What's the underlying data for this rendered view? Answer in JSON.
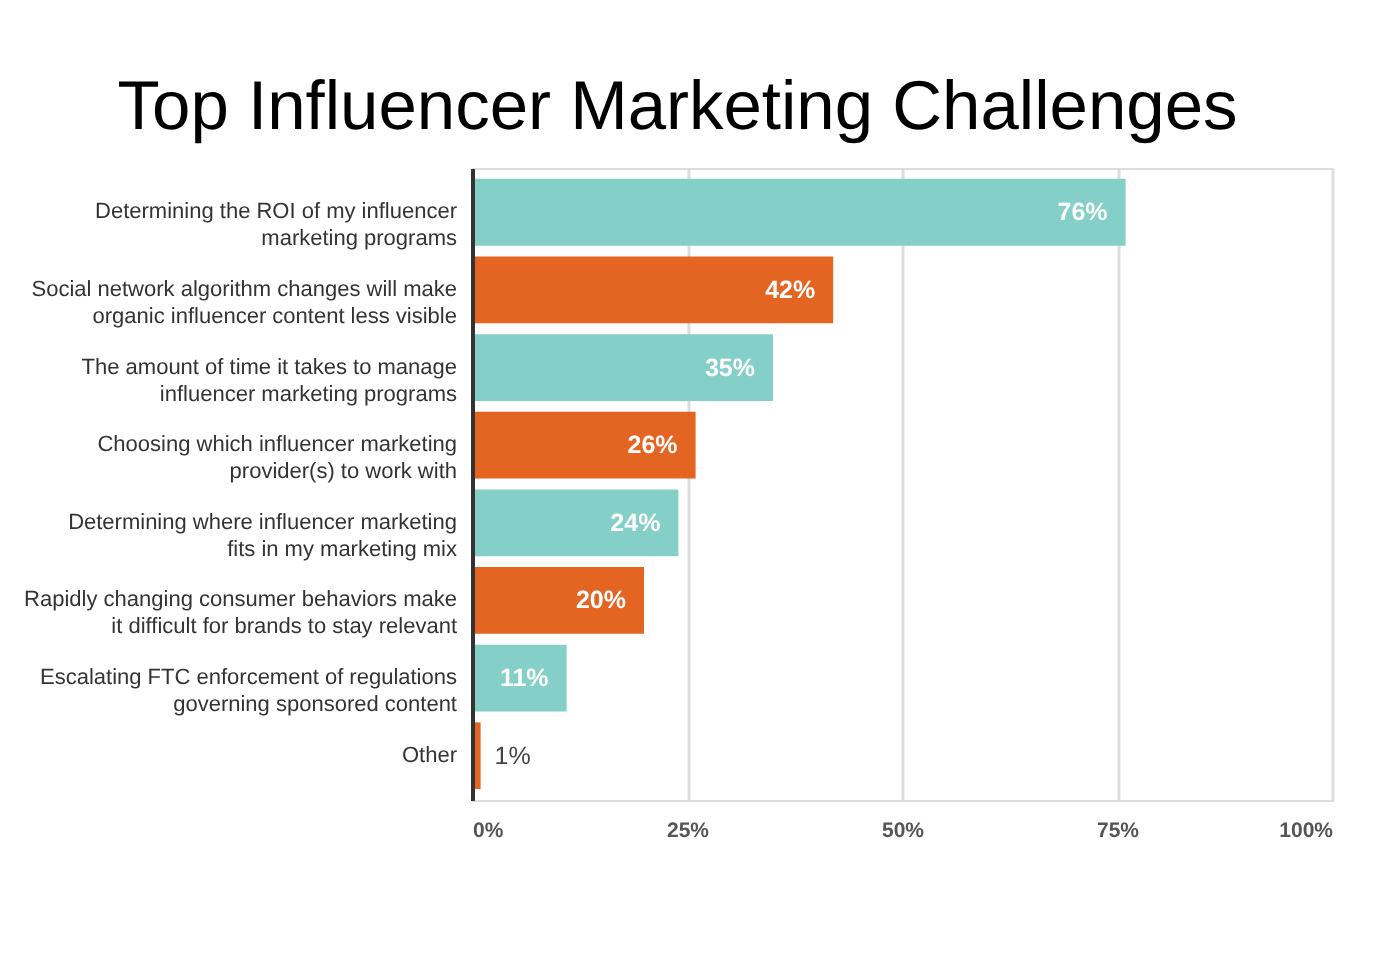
{
  "chart_data": {
    "type": "bar",
    "orientation": "horizontal",
    "title": "Top Influencer Marketing Challenges",
    "categories": [
      "Determining the ROI of my influencer marketing programs",
      "Social network algorithm changes will make organic influencer content less visible",
      "The amount of time it takes to manage influencer marketing programs",
      "Choosing which influencer marketing provider(s) to work with",
      "Determining where influencer marketing fits in my marketing mix",
      "Rapidly changing consumer behaviors make it difficult for brands to stay relevant",
      "Escalating FTC enforcement of regulations governing sponsored content",
      "Other"
    ],
    "values": [
      76,
      42,
      35,
      26,
      24,
      20,
      11,
      1
    ],
    "colors": [
      "#84cfc8",
      "#e46522",
      "#84cfc8",
      "#e46522",
      "#84cfc8",
      "#e46522",
      "#84cfc8",
      "#e46522"
    ],
    "value_labels": [
      "76%",
      "42%",
      "35%",
      "26%",
      "24%",
      "20%",
      "11%",
      "1%"
    ],
    "xlim": [
      0,
      100
    ],
    "xticks": [
      {
        "value": 0,
        "label": "0%"
      },
      {
        "value": 25,
        "label": "25%"
      },
      {
        "value": 50,
        "label": "50%"
      },
      {
        "value": 75,
        "label": "75%"
      },
      {
        "value": 100,
        "label": "100%"
      }
    ],
    "grid": "x"
  }
}
